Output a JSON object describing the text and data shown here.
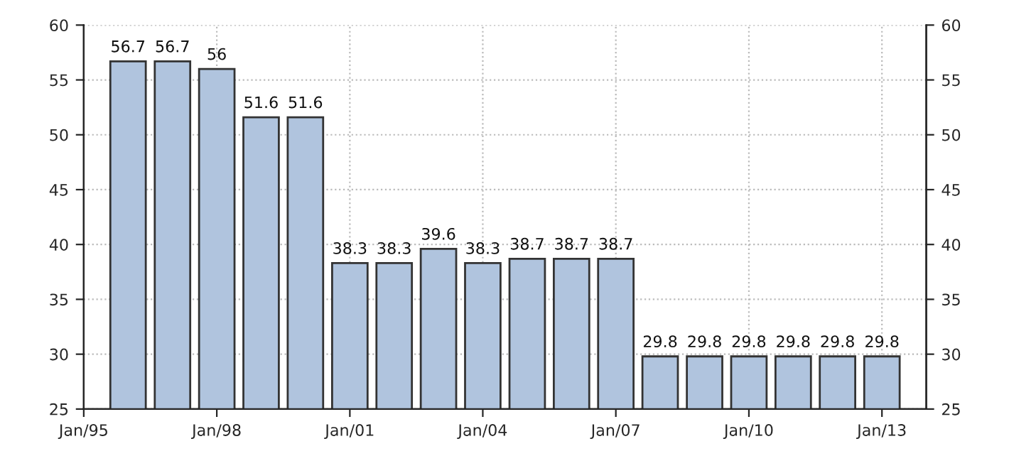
{
  "chart_data": {
    "type": "bar",
    "x": [
      "1996-01",
      "1997-01",
      "1998-01",
      "1999-01",
      "2000-01",
      "2001-01",
      "2002-01",
      "2003-01",
      "2004-01",
      "2005-01",
      "2006-01",
      "2007-01",
      "2008-01",
      "2009-01",
      "2010-01",
      "2011-01",
      "2012-01",
      "2013-01"
    ],
    "values": [
      56.7,
      56.7,
      56,
      51.6,
      51.6,
      38.3,
      38.3,
      39.6,
      38.3,
      38.7,
      38.7,
      38.7,
      29.8,
      29.8,
      29.8,
      29.8,
      29.8,
      29.8
    ],
    "color": "#b0c4de",
    "data_labels": true,
    "xlim": [
      "1995-01",
      "2014-01"
    ],
    "xticks": [
      {
        "value": "1995-01",
        "label": "Jan/95"
      },
      {
        "value": "1998-01",
        "label": "Jan/98"
      },
      {
        "value": "2001-01",
        "label": "Jan/01"
      },
      {
        "value": "2004-01",
        "label": "Jan/04"
      },
      {
        "value": "2007-01",
        "label": "Jan/07"
      },
      {
        "value": "2010-01",
        "label": "Jan/10"
      },
      {
        "value": "2013-01",
        "label": "Jan/13"
      }
    ],
    "ylim": [
      25,
      60
    ],
    "yticks": [
      25,
      30,
      35,
      40,
      45,
      50,
      55,
      60
    ],
    "y2lim": [
      25,
      60
    ],
    "y2ticks": [
      25,
      30,
      35,
      40,
      45,
      50,
      55,
      60
    ],
    "grid": true,
    "legend": false
  }
}
